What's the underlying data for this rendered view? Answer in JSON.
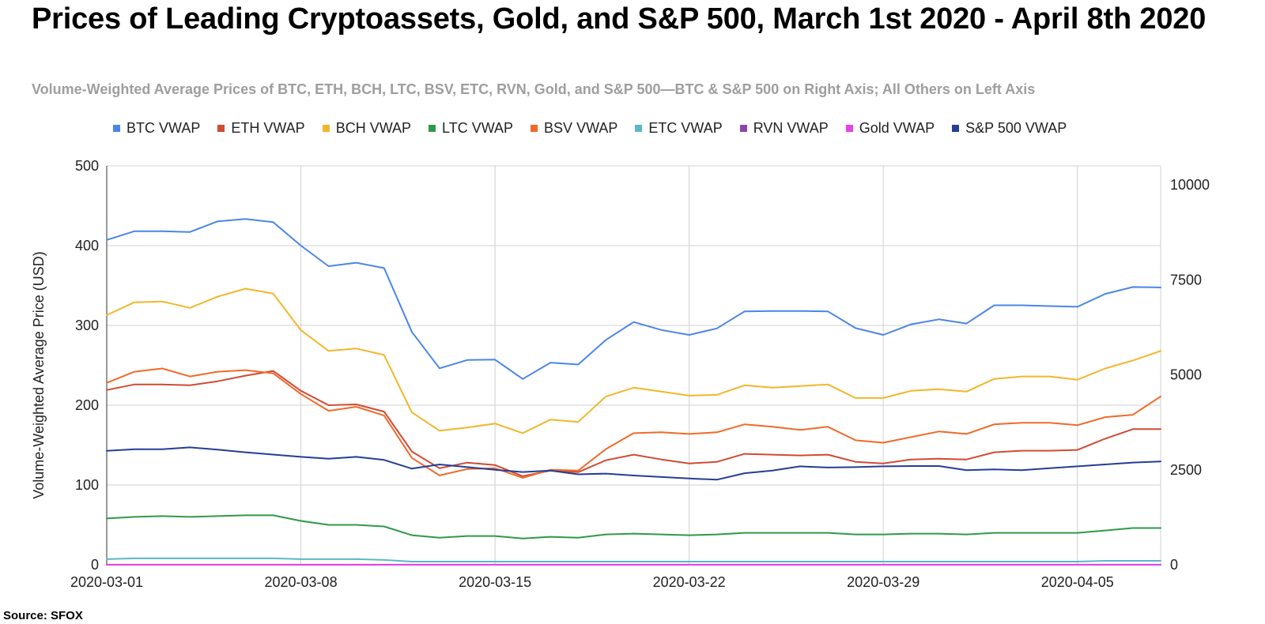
{
  "title": "Prices of Leading Cryptoassets, Gold, and S&P 500, March 1st 2020 - April 8th 2020",
  "subtitle": "Volume-Weighted Average Prices of BTC, ETH, BCH, LTC, BSV, ETC, RVN, Gold, and S&P 500—BTC & S&P 500 on Right Axis; All Others on Left Axis",
  "source": "Source: SFOX",
  "chart_data": {
    "type": "line",
    "ylabel": "Volume-Weighted Average Price (USD)",
    "y_left": {
      "min": 0,
      "max": 500,
      "ticks": [
        "0",
        "100",
        "200",
        "300",
        "400",
        "500"
      ]
    },
    "y_right": {
      "min": 0,
      "max": 10500,
      "ticks": [
        "0",
        "2500",
        "5000",
        "7500",
        "10000"
      ]
    },
    "x_ticks": [
      "2020-03-01",
      "2020-03-08",
      "2020-03-15",
      "2020-03-22",
      "2020-03-29",
      "2020-04-05"
    ],
    "x": [
      "2020-03-01",
      "2020-03-02",
      "2020-03-03",
      "2020-03-04",
      "2020-03-05",
      "2020-03-06",
      "2020-03-07",
      "2020-03-08",
      "2020-03-09",
      "2020-03-10",
      "2020-03-11",
      "2020-03-12",
      "2020-03-13",
      "2020-03-14",
      "2020-03-15",
      "2020-03-16",
      "2020-03-17",
      "2020-03-18",
      "2020-03-19",
      "2020-03-20",
      "2020-03-21",
      "2020-03-22",
      "2020-03-23",
      "2020-03-24",
      "2020-03-25",
      "2020-03-26",
      "2020-03-27",
      "2020-03-28",
      "2020-03-29",
      "2020-03-30",
      "2020-03-31",
      "2020-04-01",
      "2020-04-02",
      "2020-04-03",
      "2020-04-04",
      "2020-04-05",
      "2020-04-06",
      "2020-04-07",
      "2020-04-08"
    ],
    "grid": true,
    "legend_position": "top",
    "series": [
      {
        "name": "BTC VWAP",
        "axis": "right",
        "color": "#4a86e8",
        "values": [
          8550,
          8780,
          8780,
          8760,
          9040,
          9100,
          9020,
          8400,
          7860,
          7950,
          7810,
          6130,
          5170,
          5390,
          5400,
          4890,
          5320,
          5270,
          5920,
          6390,
          6180,
          6050,
          6220,
          6670,
          6680,
          6680,
          6670,
          6230,
          6050,
          6330,
          6460,
          6350,
          6830,
          6830,
          6810,
          6790,
          7130,
          7310,
          7300
        ]
      },
      {
        "name": "ETH VWAP",
        "axis": "left",
        "color": "#d14a33",
        "values": [
          219,
          226,
          226,
          225,
          230,
          237,
          243,
          218,
          200,
          201,
          192,
          142,
          121,
          128,
          125,
          111,
          118,
          116,
          131,
          138,
          132,
          127,
          129,
          139,
          138,
          137,
          138,
          129,
          127,
          132,
          133,
          132,
          141,
          143,
          143,
          144,
          158,
          170,
          170
        ]
      },
      {
        "name": "BCH VWAP",
        "axis": "left",
        "color": "#f1b72b",
        "values": [
          313,
          329,
          330,
          322,
          336,
          346,
          340,
          294,
          268,
          271,
          263,
          191,
          168,
          172,
          177,
          165,
          182,
          179,
          211,
          222,
          217,
          212,
          213,
          225,
          222,
          224,
          226,
          209,
          209,
          218,
          220,
          217,
          233,
          236,
          236,
          232,
          246,
          256,
          268
        ]
      },
      {
        "name": "LTC VWAP",
        "axis": "left",
        "color": "#2e9a49",
        "values": [
          58,
          60,
          61,
          60,
          61,
          62,
          62,
          55,
          50,
          50,
          48,
          37,
          34,
          36,
          36,
          33,
          35,
          34,
          38,
          39,
          38,
          37,
          38,
          40,
          40,
          40,
          40,
          38,
          38,
          39,
          39,
          38,
          40,
          40,
          40,
          40,
          43,
          46,
          46
        ]
      },
      {
        "name": "BSV VWAP",
        "axis": "left",
        "color": "#f06a28",
        "values": [
          228,
          242,
          246,
          236,
          242,
          244,
          240,
          214,
          193,
          198,
          187,
          134,
          112,
          120,
          121,
          109,
          119,
          118,
          145,
          165,
          166,
          164,
          166,
          176,
          173,
          169,
          173,
          156,
          153,
          160,
          167,
          164,
          176,
          178,
          178,
          175,
          185,
          188,
          211
        ]
      },
      {
        "name": "ETC VWAP",
        "axis": "left",
        "color": "#5bb7c9",
        "values": [
          7,
          8,
          8,
          8,
          8,
          8,
          8,
          7,
          7,
          7,
          6,
          4,
          4,
          4,
          4,
          4,
          4,
          4,
          4,
          4,
          4,
          4,
          4,
          4,
          4,
          4,
          4,
          4,
          4,
          4,
          4,
          4,
          4,
          4,
          4,
          4,
          5,
          5,
          5
        ]
      },
      {
        "name": "RVN VWAP",
        "axis": "left",
        "color": "#8e44ad",
        "values": [
          0.03,
          0.03,
          0.03,
          0.03,
          0.03,
          0.03,
          0.03,
          0.03,
          0.02,
          0.02,
          0.02,
          0.01,
          0.01,
          0.01,
          0.01,
          0.01,
          0.01,
          0.01,
          0.01,
          0.01,
          0.01,
          0.01,
          0.01,
          0.01,
          0.01,
          0.01,
          0.01,
          0.01,
          0.01,
          0.01,
          0.01,
          0.01,
          0.01,
          0.01,
          0.01,
          0.01,
          0.01,
          0.01,
          0.01
        ]
      },
      {
        "name": "Gold VWAP",
        "axis": "left",
        "color": "#e645e6",
        "values": [
          0.1,
          0.1,
          0.1,
          0.1,
          0.1,
          0.1,
          0.1,
          0.1,
          0.1,
          0.1,
          0.1,
          0.1,
          0.1,
          0.1,
          0.1,
          0.1,
          0.1,
          0.1,
          0.1,
          0.1,
          0.1,
          0.1,
          0.1,
          0.1,
          0.1,
          0.1,
          0.1,
          0.1,
          0.1,
          0.1,
          0.1,
          0.1,
          0.1,
          0.1,
          0.1,
          0.1,
          0.1,
          0.1,
          0.1
        ]
      },
      {
        "name": "S&P 500 VWAP",
        "axis": "right",
        "color": "#253d95",
        "values": [
          3000,
          3040,
          3040,
          3090,
          3030,
          2960,
          2900,
          2840,
          2790,
          2840,
          2760,
          2530,
          2640,
          2570,
          2500,
          2440,
          2480,
          2380,
          2400,
          2350,
          2310,
          2270,
          2240,
          2410,
          2480,
          2590,
          2560,
          2570,
          2590,
          2600,
          2600,
          2490,
          2510,
          2490,
          2540,
          2590,
          2640,
          2690,
          2720
        ]
      }
    ]
  }
}
